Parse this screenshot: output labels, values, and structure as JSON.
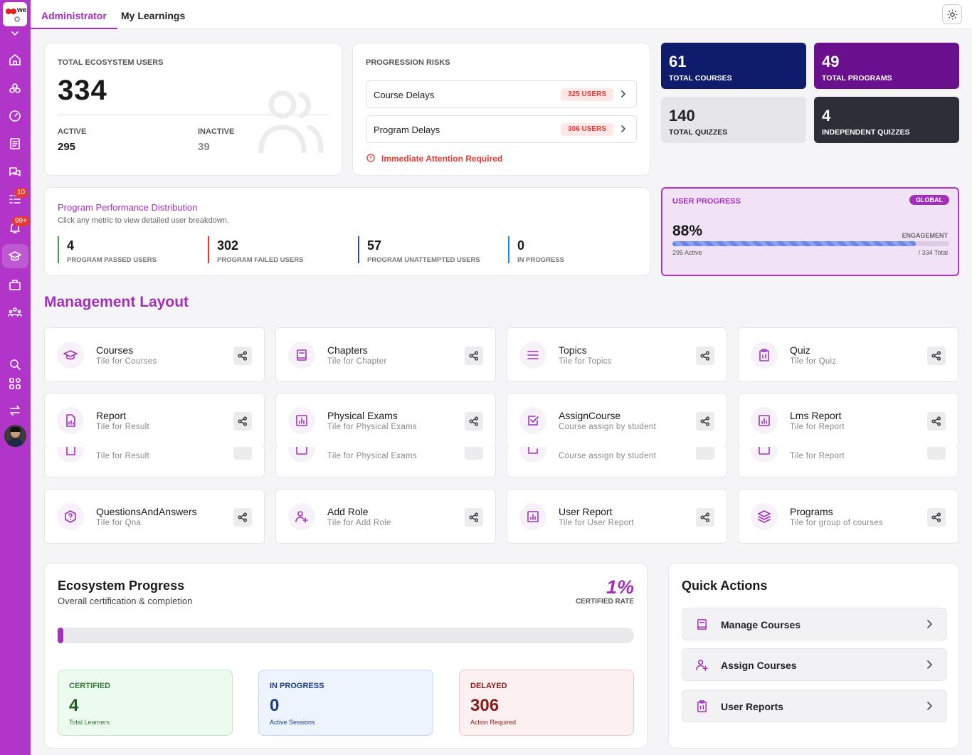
{
  "colors": {
    "accent": "#a330bc",
    "sidebar": "#b035c8",
    "navy": "#0f1c6b",
    "purple": "#6a0f8e",
    "dark": "#2c2f38",
    "danger": "#e53935"
  },
  "logo": {
    "text": "we"
  },
  "sidebar": {
    "badges": {
      "tasks": "10",
      "notifications": "99+"
    }
  },
  "tabs": [
    "Administrator",
    "My Learnings"
  ],
  "users": {
    "title": "TOTAL ECOSYSTEM USERS",
    "total": "334",
    "active_label": "ACTIVE",
    "active": "295",
    "inactive_label": "INACTIVE",
    "inactive": "39"
  },
  "risks": {
    "title": "PROGRESSION RISKS",
    "rows": [
      {
        "label": "Course Delays",
        "badge": "325 USERS"
      },
      {
        "label": "Program Delays",
        "badge": "306 USERS"
      }
    ],
    "alert": "Immediate Attention Required"
  },
  "kpis": [
    {
      "value": "61",
      "label": "TOTAL COURSES"
    },
    {
      "value": "49",
      "label": "TOTAL PROGRAMS"
    },
    {
      "value": "140",
      "label": "TOTAL QUIZZES"
    },
    {
      "value": "4",
      "label": "INDEPENDENT QUIZZES"
    }
  ],
  "performance": {
    "title": "Program Performance Distribution",
    "subtitle": "Click any metric to view detailed user breakdown.",
    "metrics": [
      {
        "value": "4",
        "label": "PROGRAM PASSED USERS",
        "color": "#43a047"
      },
      {
        "value": "302",
        "label": "PROGRAM FAILED USERS",
        "color": "#e53935"
      },
      {
        "value": "57",
        "label": "PROGRAM UNATTEMPTED USERS",
        "color": "#3949ab"
      },
      {
        "value": "0",
        "label": "IN PROGRESS",
        "color": "#1e88e5"
      }
    ]
  },
  "user_progress": {
    "title": "USER PROGRESS",
    "badge": "GLOBAL",
    "percent": "88%",
    "engagement": "ENGAGEMENT",
    "active": "295 Active",
    "total": "/ 334 Total",
    "fill_fraction": 0.88
  },
  "management": {
    "title": "Management Layout",
    "tiles": [
      {
        "title": "Courses",
        "sub": "Tile for Courses",
        "icon": "graduation-cap-icon"
      },
      {
        "title": "Chapters",
        "sub": "Tile for Chapter",
        "icon": "book-icon"
      },
      {
        "title": "Topics",
        "sub": "Tile for Topics",
        "icon": "list-icon"
      },
      {
        "title": "Quiz",
        "sub": "Tile for Quiz",
        "icon": "clipboard-icon"
      },
      {
        "title": "Report",
        "sub": "Tile for Result",
        "icon": "report-icon"
      },
      {
        "title": "Physical Exams",
        "sub": "Tile for Physical Exams",
        "icon": "bar-chart-icon"
      },
      {
        "title": "AssignCourse",
        "sub": "Course assign by student",
        "icon": "check-square-icon"
      },
      {
        "title": "Lms Report",
        "sub": "Tile for Report",
        "icon": "bar-chart-icon"
      },
      {
        "title": "QuestionsAndAnswers",
        "sub": "Tile for Qna",
        "icon": "help-icon"
      },
      {
        "title": "Add Role",
        "sub": "Tile for Add Role",
        "icon": "user-plus-icon"
      },
      {
        "title": "User Report",
        "sub": "Tile for User Report",
        "icon": "bar-chart-icon"
      },
      {
        "title": "Programs",
        "sub": "Tile for group of courses",
        "icon": "layers-icon"
      }
    ]
  },
  "ecosystem": {
    "title": "Ecosystem Progress",
    "subtitle": "Overall certification & completion",
    "rate": "1%",
    "rate_label": "CERTIFIED RATE",
    "progress_fraction": 0.01,
    "stats": [
      {
        "head": "CERTIFIED",
        "value": "4",
        "sub": "Total Learners"
      },
      {
        "head": "IN PROGRESS",
        "value": "0",
        "sub": "Active Sessions"
      },
      {
        "head": "DELAYED",
        "value": "306",
        "sub": "Action Required"
      }
    ]
  },
  "quick_actions": {
    "title": "Quick Actions",
    "items": [
      "Manage Courses",
      "Assign Courses",
      "User Reports"
    ]
  }
}
